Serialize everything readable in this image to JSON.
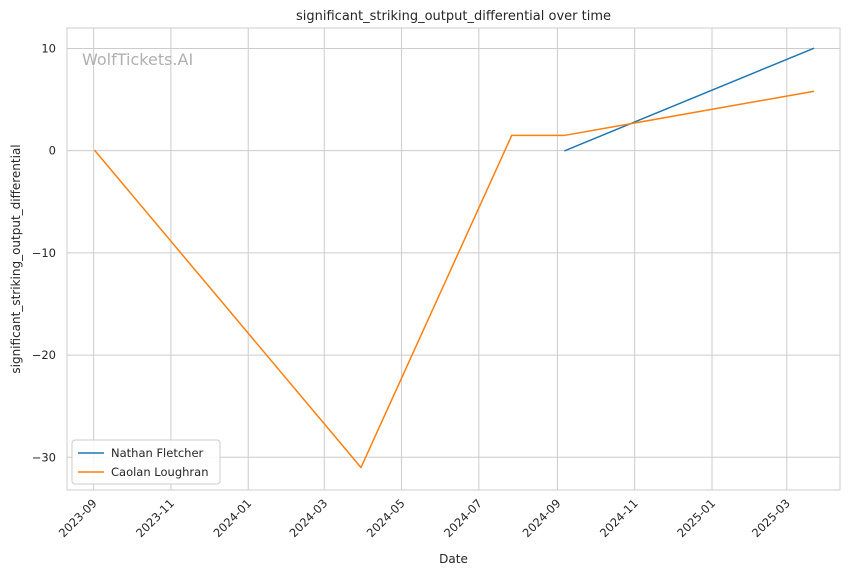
{
  "watermark": "WolfTickets.AI",
  "chart_data": {
    "type": "line",
    "title": "significant_striking_output_differential over time",
    "xlabel": "Date",
    "ylabel": "significant_striking_output_differential",
    "x_ticks": [
      "2023-09",
      "2023-11",
      "2024-01",
      "2024-03",
      "2024-05",
      "2024-07",
      "2024-09",
      "2024-11",
      "2025-01",
      "2025-03"
    ],
    "y_ticks": [
      10,
      0,
      -10,
      -20,
      -30
    ],
    "y_tick_labels": [
      "10",
      "0",
      "−10",
      "−20",
      "−30"
    ],
    "xlim": [
      "2023-08-11",
      "2025-04-12"
    ],
    "ylim": [
      -33.2,
      12.0
    ],
    "grid": true,
    "legend_position": "lower-left",
    "series": [
      {
        "name": "Nathan Fletcher",
        "color": "#1f77b4",
        "points": [
          {
            "x": "2024-09-07",
            "y": 0.0
          },
          {
            "x": "2025-03-22",
            "y": 10.0
          }
        ]
      },
      {
        "name": "Caolan Loughran",
        "color": "#ff7f0e",
        "points": [
          {
            "x": "2023-09-02",
            "y": 0.0
          },
          {
            "x": "2024-03-30",
            "y": -31.0
          },
          {
            "x": "2024-07-27",
            "y": 1.5
          },
          {
            "x": "2024-09-07",
            "y": 1.5
          },
          {
            "x": "2025-03-22",
            "y": 5.8
          }
        ]
      }
    ]
  }
}
